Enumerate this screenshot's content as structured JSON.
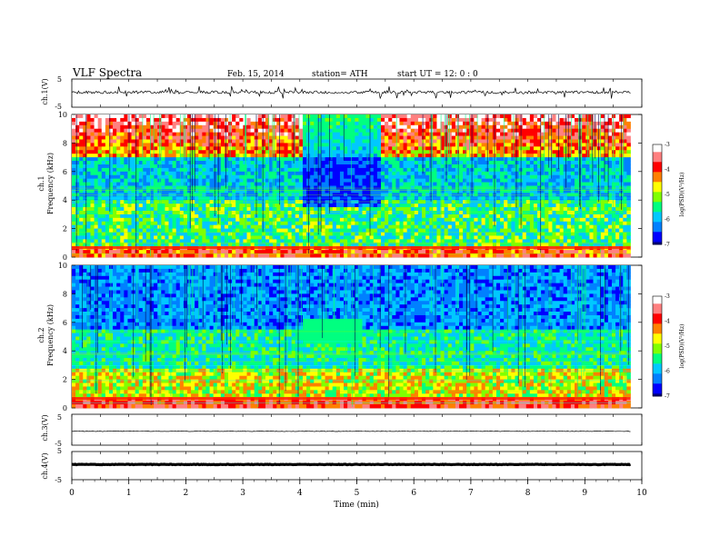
{
  "header": {
    "title": "VLF  Spectra",
    "date": "Feb. 15, 2014",
    "station": "station= ATH",
    "start": "start  UT  =    12: 0   : 0"
  },
  "colors": {
    "colormap": [
      "#000080",
      "#0000ff",
      "#0080ff",
      "#00c8ff",
      "#00ff80",
      "#80ff00",
      "#ffff00",
      "#ff8000",
      "#ff0000",
      "#ff8080",
      "#ffffff"
    ],
    "trace": "#000000"
  },
  "chart_data": [
    {
      "type": "line",
      "panel": "ch1-voltage",
      "ylabel": "ch.1(V)",
      "ylim": [
        -5,
        5
      ],
      "yticks": [
        "5",
        "-5"
      ],
      "series": [
        {
          "values_note_free": true,
          "level": 0.3,
          "spikes": "frequent"
        }
      ]
    },
    {
      "type": "heatmap",
      "panel": "ch1-spectrogram",
      "ylabel": "ch.1\nFrequency  (kHz)",
      "ylabel_top": "ch.1",
      "ylabel_bottom": "Frequency  (kHz)",
      "ylim": [
        0,
        10
      ],
      "yticks": [
        "0",
        "2",
        "4",
        "6",
        "8",
        "10"
      ],
      "xlim": [
        0,
        10
      ],
      "colorbar": {
        "label": "log(PSD)(V²/Hz)",
        "range": [
          -7,
          -3
        ],
        "ticks": [
          "-3",
          "-4",
          "-5",
          "-6",
          "-7"
        ]
      }
    },
    {
      "type": "heatmap",
      "panel": "ch2-spectrogram",
      "ylabel_top": "ch.2",
      "ylabel_bottom": "Frequency  (kHz)",
      "ylim": [
        0,
        10
      ],
      "yticks": [
        "0",
        "2",
        "4",
        "6",
        "8",
        "10"
      ],
      "xlim": [
        0,
        10
      ],
      "colorbar": {
        "label": "log(PSD)(V²/Hz)",
        "range": [
          -7,
          -3
        ],
        "ticks": [
          "-3",
          "-4",
          "-5",
          "-6",
          "-7"
        ]
      }
    },
    {
      "type": "line",
      "panel": "ch3-voltage",
      "ylabel": "ch.3(V)",
      "ylim": [
        -5,
        5
      ],
      "yticks": [
        "5",
        "-5"
      ],
      "series": [
        {
          "level": -0.5
        }
      ]
    },
    {
      "type": "line",
      "panel": "ch4-voltage",
      "ylabel": "ch.4(V)",
      "ylim": [
        -5,
        5
      ],
      "yticks": [
        "5",
        "-5"
      ],
      "series": [
        {
          "level": 0.4,
          "thick": true
        }
      ]
    }
  ],
  "xaxis": {
    "label": "Time  (min)",
    "ticks": [
      "0",
      "1",
      "2",
      "3",
      "4",
      "5",
      "6",
      "7",
      "8",
      "9",
      "10"
    ],
    "range": [
      0,
      10
    ],
    "data_end": 9.8
  }
}
